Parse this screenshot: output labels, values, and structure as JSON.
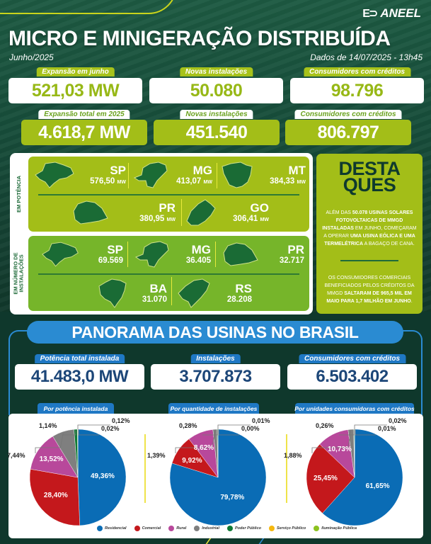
{
  "header": {
    "brand": "ANEEL",
    "brand_mark": "E⊃",
    "title": "MICRO E MINIGERAÇÃO DISTRIBUÍDA",
    "period": "Junho/2025",
    "data_date": "Dados de 14/07/2025 - 13h45"
  },
  "monthly_kpis": [
    {
      "label": "Expansão em junho",
      "value": "521,03 MW"
    },
    {
      "label": "Novas instalações",
      "value": "50.080"
    },
    {
      "label": "Consumidores com créditos",
      "value": "98.796"
    }
  ],
  "yearly_kpis": [
    {
      "label": "Expansão total em 2025",
      "value": "4.618,7 MW"
    },
    {
      "label": "Novas instalações",
      "value": "451.540"
    },
    {
      "label": "Consumidores com créditos",
      "value": "806.797"
    }
  ],
  "states": {
    "power_label": "EM POTÊNCIA",
    "installs_label_1": "EM NÚMERO DE",
    "installs_label_2": "INSTALAÇÕES",
    "unit": "MW",
    "by_power": [
      {
        "state": "SP",
        "value": "576,50"
      },
      {
        "state": "MG",
        "value": "413,07"
      },
      {
        "state": "MT",
        "value": "384,33"
      },
      {
        "state": "PR",
        "value": "380,95"
      },
      {
        "state": "GO",
        "value": "306,41"
      }
    ],
    "by_installs": [
      {
        "state": "SP",
        "value": "69.569"
      },
      {
        "state": "MG",
        "value": "36.405"
      },
      {
        "state": "PR",
        "value": "32.717"
      },
      {
        "state": "BA",
        "value": "31.070"
      },
      {
        "state": "RS",
        "value": "28.208"
      }
    ]
  },
  "highlights": {
    "title_1": "DESTA",
    "title_2": "QUES",
    "p1": [
      {
        "t": "ALÉM DAS ",
        "b": false
      },
      {
        "t": "50.078 USINAS SOLARES FOTOVOLTAICAS DE MMGD INSTALADAS",
        "b": true
      },
      {
        "t": " EM JUNHO, COMEÇARAM A OPERAR ",
        "b": false
      },
      {
        "t": "UMA USINA EÓLICA E UMA TERMELÉTRICA",
        "b": true
      },
      {
        "t": " A BAGAÇO DE CANA.",
        "b": false
      }
    ],
    "p2": [
      {
        "t": "OS CONSUMIDORES COMERCIAIS BENEFICIADOS PELOS CRÉDITOS DA MMGD ",
        "b": false
      },
      {
        "t": "SALTARAM DE 965,5 MIL EM MAIO PARA 1,7 MILHÃO EM JUNHO",
        "b": true
      },
      {
        "t": ".",
        "b": false
      }
    ]
  },
  "panorama": {
    "title": "PANORAMA DAS USINAS NO BRASIL",
    "kpis": [
      {
        "label": "Potência total instalada",
        "value": "41.483,0 MW"
      },
      {
        "label": "Instalações",
        "value": "3.707.873"
      },
      {
        "label": "Consumidores com créditos",
        "value": "6.503.402"
      }
    ]
  },
  "colors": {
    "Residencial": "#0a6cb5",
    "Comercial": "#c4181c",
    "Rural": "#b8489b",
    "Industrial": "#7f7f7f",
    "Poder Público": "#0f7a35",
    "Serviço Público": "#f5b80f",
    "Iluminação Pública": "#8cc21f"
  },
  "chart_data": [
    {
      "type": "pie",
      "title": "Por potência instalada",
      "categories": [
        "Residencial",
        "Comercial",
        "Rural",
        "Industrial",
        "Poder Público",
        "Serviço Público",
        "Iluminação Pública"
      ],
      "values": [
        49.36,
        28.4,
        13.52,
        7.44,
        1.14,
        0.12,
        0.02
      ],
      "labels": [
        "49,36%",
        "28,40%",
        "13,52%",
        "7,44%",
        "1,14%",
        "0,12%",
        "0,02%"
      ]
    },
    {
      "type": "pie",
      "title": "Por quantidade de instalações",
      "categories": [
        "Residencial",
        "Comercial",
        "Rural",
        "Industrial",
        "Poder Público",
        "Serviço Público",
        "Iluminação Pública"
      ],
      "values": [
        79.78,
        9.92,
        8.62,
        1.39,
        0.28,
        0.01,
        0.0
      ],
      "labels": [
        "79,78%",
        "9,92%",
        "8,62%",
        "1,39%",
        "0,28%",
        "0,01%",
        "0,00%"
      ]
    },
    {
      "type": "pie",
      "title": "Por unidades consumidoras com créditos",
      "categories": [
        "Residencial",
        "Comercial",
        "Rural",
        "Industrial",
        "Poder Público",
        "Serviço Público",
        "Iluminação Pública"
      ],
      "values": [
        61.65,
        25.45,
        10.73,
        1.88,
        0.26,
        0.02,
        0.01
      ],
      "labels": [
        "61,65%",
        "25,45%",
        "10,73%",
        "1,88%",
        "0,26%",
        "0,02%",
        "0,01%"
      ]
    }
  ],
  "legend": [
    "Residencial",
    "Comercial",
    "Rural",
    "Industrial",
    "Poder Público",
    "Serviço Público",
    "Iluminação Pública"
  ]
}
